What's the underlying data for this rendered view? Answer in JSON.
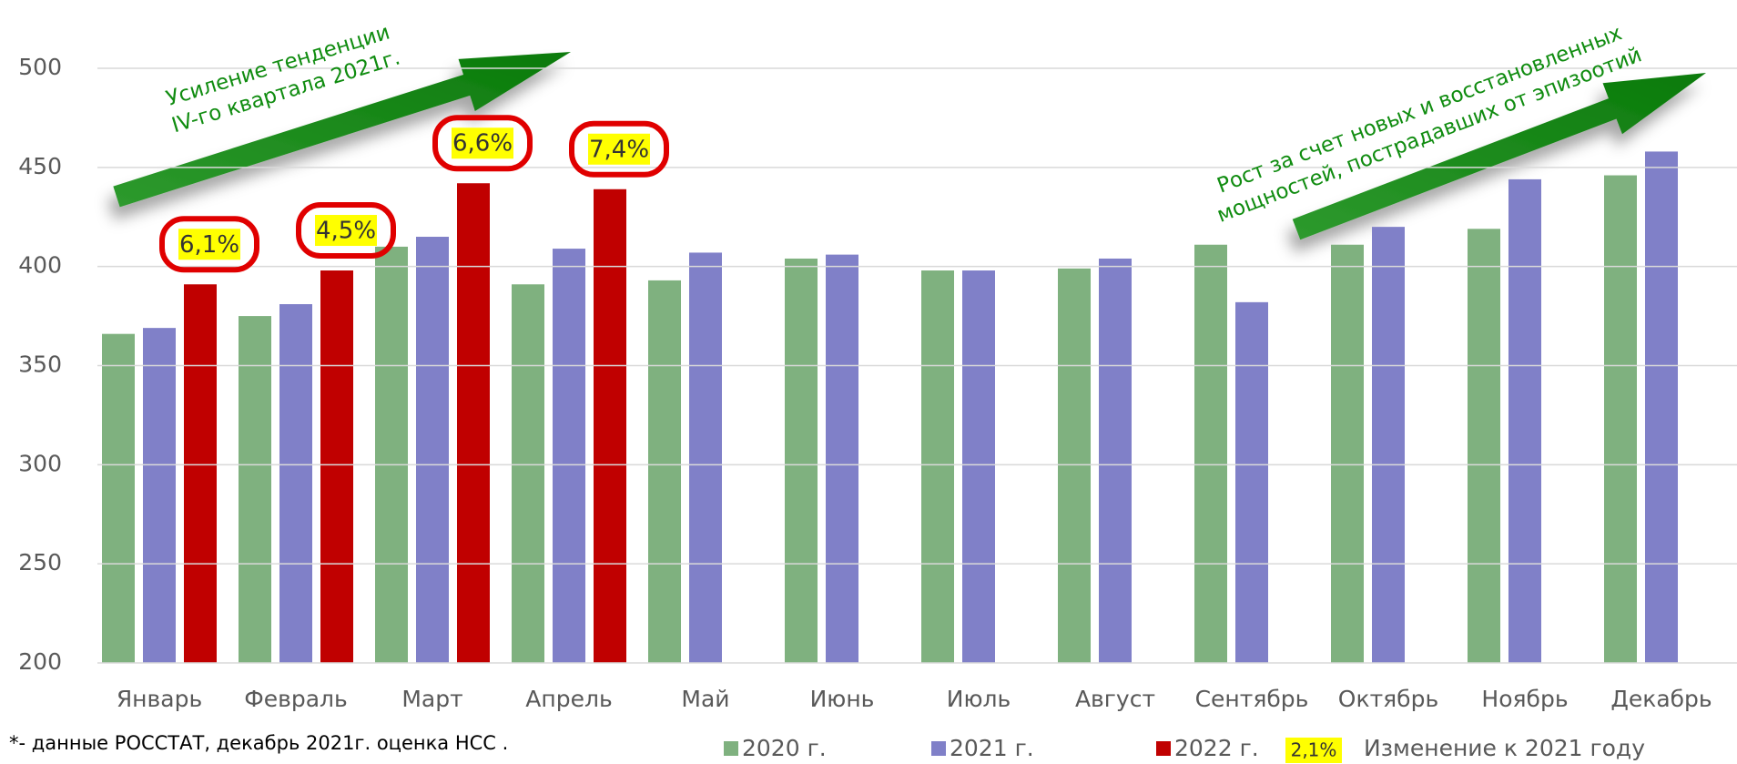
{
  "chart_data": {
    "type": "bar",
    "categories": [
      "Январь",
      "Февраль",
      "Март",
      "Апрель",
      "Май",
      "Июнь",
      "Июль",
      "Август",
      "Сентябрь",
      "Октябрь",
      "Ноябрь",
      "Декабрь"
    ],
    "series": [
      {
        "name": "2020 г.",
        "color": "#7fb17f",
        "values": [
          366,
          375,
          410,
          391,
          393,
          404,
          398,
          399,
          411,
          411,
          419,
          446
        ]
      },
      {
        "name": "2021 г.",
        "color": "#8080c8",
        "values": [
          369,
          381,
          415,
          409,
          407,
          406,
          398,
          404,
          382,
          420,
          444,
          458
        ]
      },
      {
        "name": "2022 г.",
        "color": "#c00000",
        "values": [
          391,
          398,
          442,
          439,
          null,
          null,
          null,
          null,
          null,
          null,
          null,
          null
        ],
        "change_labels": [
          "6,1%",
          "4,5%",
          "6,6%",
          "7,4%",
          null,
          null,
          null,
          null,
          null,
          null,
          null,
          null
        ]
      }
    ],
    "change_legend": {
      "sample": "2,1%",
      "label": "Изменение к 2021 году"
    },
    "annotations": [
      [
        "Усиление тенденции",
        "IV-го квартала 2021г."
      ],
      [
        "Рост за счет новых и  восстановленных",
        "мощностей, пострадавших от эпизоотий"
      ]
    ],
    "footnote": "*- данные РОССТАТ, декабрь 2021г. оценка НСС .",
    "ylim": [
      200,
      500
    ],
    "yticks": [
      200,
      250,
      300,
      350,
      400,
      450,
      500
    ],
    "grid": true
  }
}
